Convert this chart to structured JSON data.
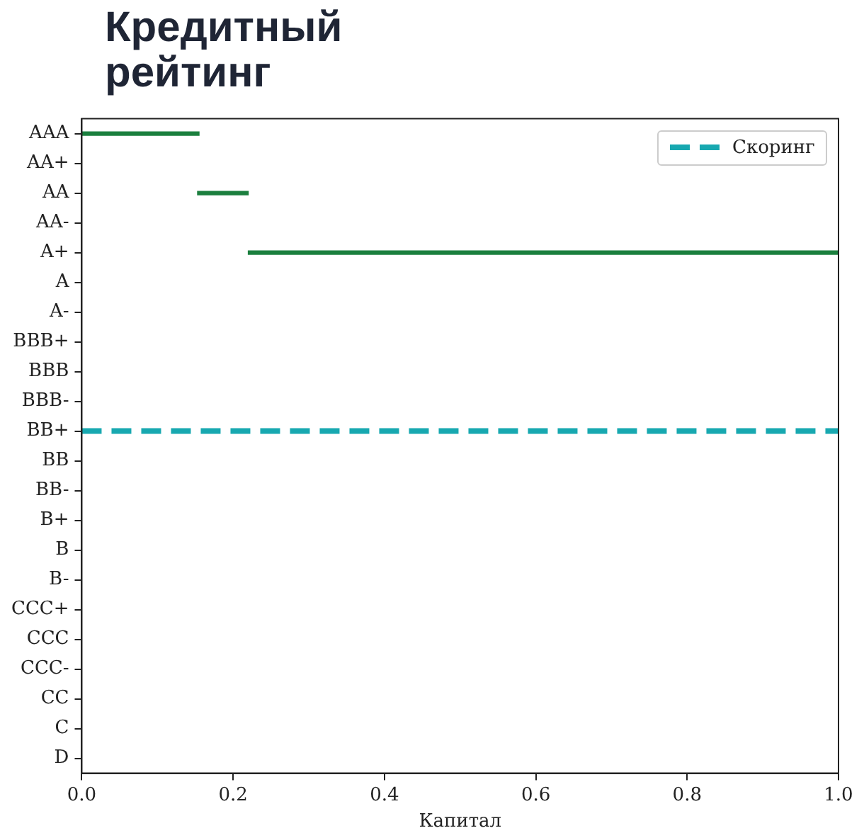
{
  "chart_data": {
    "type": "bar",
    "orientation": "horizontal",
    "title": "Кредитный рейтинг",
    "xlabel": "Капитал",
    "categories": [
      "AAA",
      "AA+",
      "AA",
      "AA-",
      "A+",
      "A",
      "A-",
      "BBB+",
      "BBB",
      "BBB-",
      "BB+",
      "BB",
      "BB-",
      "B+",
      "B",
      "B-",
      "CCC+",
      "CCC",
      "CCC-",
      "CC",
      "C",
      "D"
    ],
    "xlim": [
      0,
      1
    ],
    "xticks": [
      {
        "value": 0,
        "label": "0.0"
      },
      0.2,
      0.4,
      0.6,
      0.8,
      {
        "value": 1,
        "label": "1.0"
      }
    ],
    "color": "#1b7f3e",
    "base": [
      0,
      null,
      0.153,
      null,
      0.22,
      null,
      null,
      null,
      null,
      null,
      null,
      null,
      null,
      null,
      null,
      null,
      null,
      null,
      null,
      null,
      null,
      null
    ],
    "values": [
      0.155,
      null,
      0.067,
      null,
      0.78,
      null,
      null,
      null,
      null,
      null,
      null,
      null,
      null,
      null,
      null,
      null,
      null,
      null,
      null,
      null,
      null,
      null
    ],
    "ref_lines": [
      {
        "axis": "y",
        "value": "BB+",
        "label": "Скоринг",
        "color": "#17a8b0",
        "line_style": "dashed"
      }
    ],
    "legend": "top right",
    "grid": false
  }
}
